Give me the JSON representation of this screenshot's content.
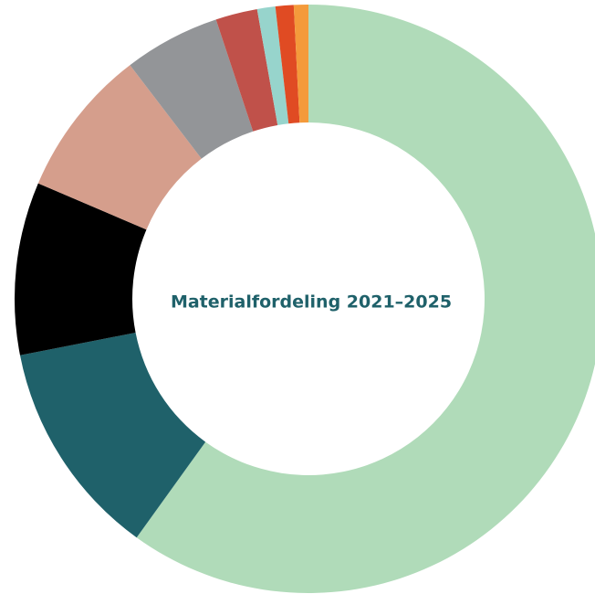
{
  "chart_data": {
    "type": "pie",
    "title": "Materialfordeling 2021–2025",
    "slices": [
      {
        "value": 60.0,
        "color": "#b0dbb9"
      },
      {
        "value": 12.0,
        "color": "#1f616a"
      },
      {
        "value": 9.5,
        "color": "#000000"
      },
      {
        "value": 8.2,
        "color": "#d59e8c"
      },
      {
        "value": 5.3,
        "color": "#939598"
      },
      {
        "value": 2.3,
        "color": "#c0514a"
      },
      {
        "value": 1.0,
        "color": "#97d4cc"
      },
      {
        "value": 1.0,
        "color": "#e04b23"
      },
      {
        "value": 0.8,
        "color": "#f49a3b"
      }
    ],
    "title_color": "#1f616a",
    "donut": true,
    "legend": "none"
  }
}
